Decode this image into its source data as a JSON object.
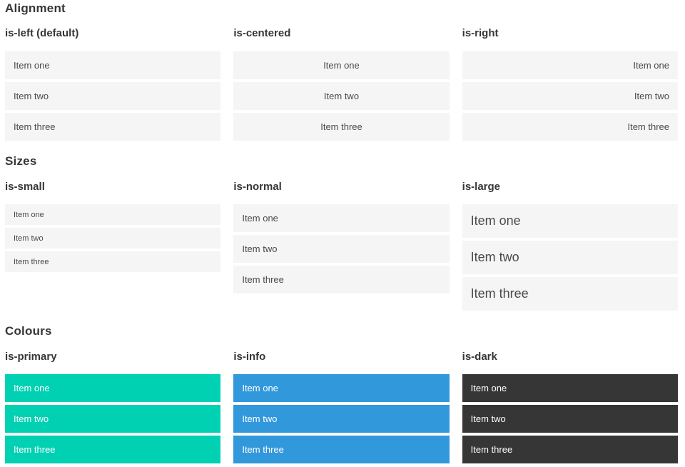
{
  "colors": {
    "page_background": "#ffffff",
    "item_background": "#f5f5f5",
    "item_text": "#4a4a4a",
    "heading_text": "#363636",
    "primary": "#00d1b2",
    "info": "#3298dc",
    "dark": "#363636",
    "light_text": "#ffffff"
  },
  "sections": [
    {
      "title": "Alignment",
      "columns": [
        {
          "label": "is-left (default)",
          "variant": "left",
          "items": [
            "Item one",
            "Item two",
            "Item three"
          ]
        },
        {
          "label": "is-centered",
          "variant": "centered",
          "items": [
            "Item one",
            "Item two",
            "Item three"
          ]
        },
        {
          "label": "is-right",
          "variant": "right",
          "items": [
            "Item one",
            "Item two",
            "Item three"
          ]
        }
      ]
    },
    {
      "title": "Sizes",
      "columns": [
        {
          "label": "is-small",
          "variant": "small",
          "items": [
            "Item one",
            "Item two",
            "Item three"
          ]
        },
        {
          "label": "is-normal",
          "variant": "normal",
          "items": [
            "Item one",
            "Item two",
            "Item three"
          ]
        },
        {
          "label": "is-large",
          "variant": "large",
          "items": [
            "Item one",
            "Item two",
            "Item three"
          ]
        }
      ]
    },
    {
      "title": "Colours",
      "columns": [
        {
          "label": "is-primary",
          "variant": "primary",
          "items": [
            "Item one",
            "Item two",
            "Item three"
          ]
        },
        {
          "label": "is-info",
          "variant": "info",
          "items": [
            "Item one",
            "Item two",
            "Item three"
          ]
        },
        {
          "label": "is-dark",
          "variant": "dark",
          "items": [
            "Item one",
            "Item two",
            "Item three"
          ]
        }
      ]
    }
  ]
}
